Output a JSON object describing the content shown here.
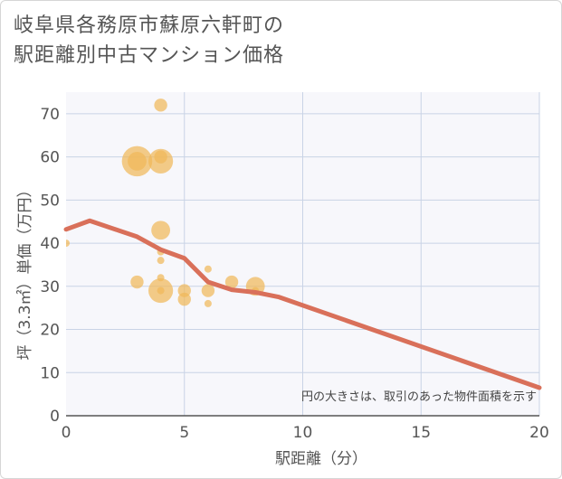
{
  "title_lines": [
    "岐阜県各務原市蘇原六軒町の",
    "駅距離別中古マンション価格"
  ],
  "chart_data": {
    "type": "scatter",
    "xlabel": "駅距離（分）",
    "ylabel": "坪（3.3㎡）単価（万円）",
    "xlim": [
      0,
      20
    ],
    "ylim": [
      0,
      75
    ],
    "xticks": [
      0,
      5,
      10,
      15,
      20
    ],
    "yticks": [
      0,
      10,
      20,
      30,
      40,
      50,
      60,
      70
    ],
    "grid": true,
    "annotation": "円の大きさは、取引のあった物件面積を示す",
    "bubble_color": "#f0b85a",
    "trend_color": "#d9705a",
    "points": [
      {
        "x": 0,
        "y": 40,
        "size": 1
      },
      {
        "x": 3,
        "y": 59,
        "size": 5
      },
      {
        "x": 3,
        "y": 59,
        "size": 3
      },
      {
        "x": 3,
        "y": 31,
        "size": 2
      },
      {
        "x": 4,
        "y": 72,
        "size": 2
      },
      {
        "x": 4,
        "y": 60,
        "size": 2
      },
      {
        "x": 4,
        "y": 59,
        "size": 4
      },
      {
        "x": 4,
        "y": 43,
        "size": 3
      },
      {
        "x": 4,
        "y": 38,
        "size": 1
      },
      {
        "x": 4,
        "y": 36,
        "size": 1
      },
      {
        "x": 4,
        "y": 32,
        "size": 1
      },
      {
        "x": 4,
        "y": 29,
        "size": 4
      },
      {
        "x": 4,
        "y": 29,
        "size": 1
      },
      {
        "x": 5,
        "y": 29,
        "size": 2
      },
      {
        "x": 5,
        "y": 27,
        "size": 2
      },
      {
        "x": 6,
        "y": 34,
        "size": 1
      },
      {
        "x": 6,
        "y": 29,
        "size": 2
      },
      {
        "x": 6,
        "y": 26,
        "size": 1
      },
      {
        "x": 7,
        "y": 31,
        "size": 2
      },
      {
        "x": 8,
        "y": 30,
        "size": 3
      },
      {
        "x": 8,
        "y": 29,
        "size": 1
      }
    ],
    "trend": {
      "x": [
        0,
        1,
        3,
        4,
        5,
        6,
        7,
        8,
        9,
        20
      ],
      "y": [
        43.2,
        45.2,
        41.5,
        38.5,
        36.5,
        31,
        29.2,
        28.6,
        27.5,
        6.5
      ]
    }
  }
}
